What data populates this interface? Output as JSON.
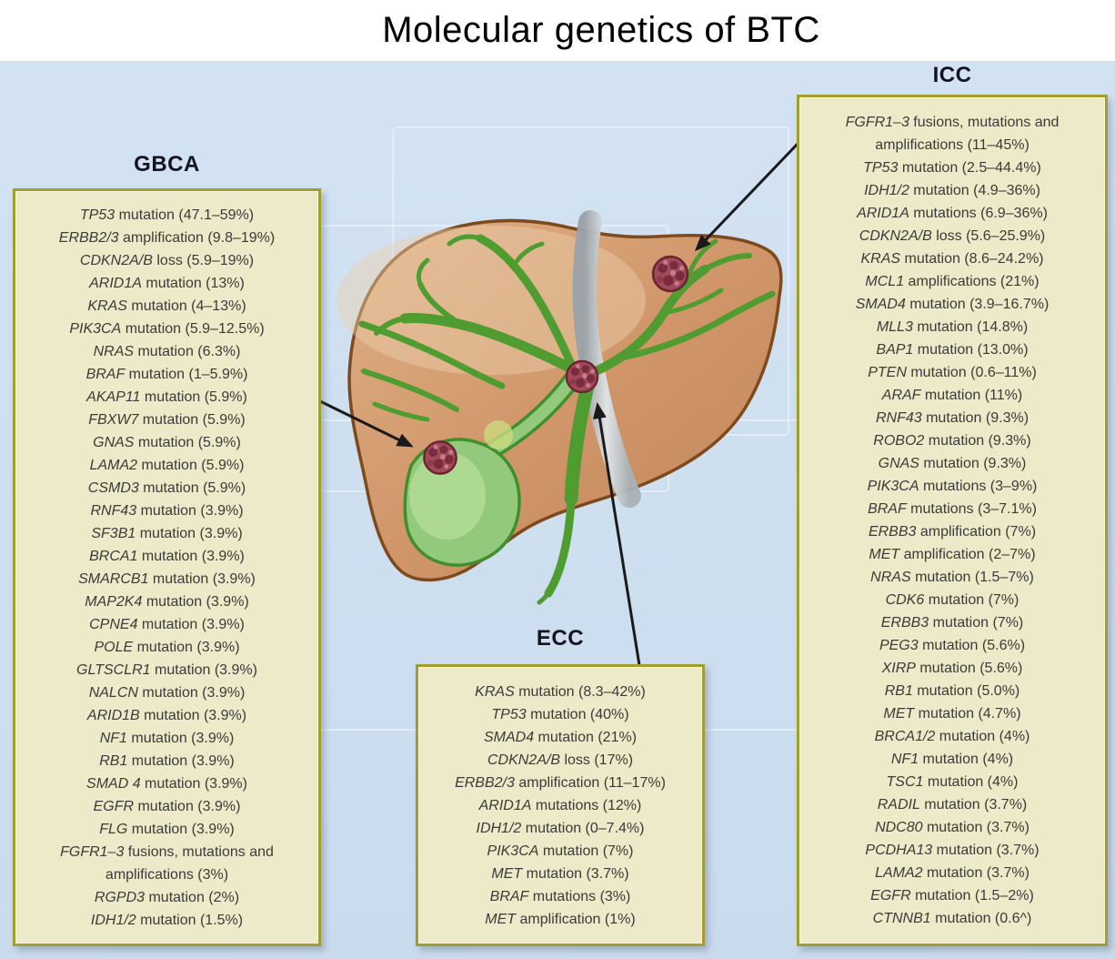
{
  "title": "Molecular genetics of BTC",
  "colors": {
    "background_blue": "#cfe0f0",
    "title_bar": "#ffffff",
    "box_fill": "#edeac9",
    "box_border": "#a19e2e",
    "entry_text": "#3a3a3a",
    "label_text": "#141420",
    "arrow": "#1a1a1a",
    "liver": "#cf9468",
    "liver_outline": "#7d4a1d",
    "bile_duct_green": "#4f9c31",
    "gallbladder_green": "#93c97d",
    "ligament_gray": "#aeb6bc",
    "tumor_red": "#a14a59"
  },
  "boxes": {
    "gbca": {
      "label": "GBCA",
      "items": [
        {
          "gene": "TP53",
          "alteration": "mutation (47.1–59%)"
        },
        {
          "gene": "ERBB2/3",
          "alteration": "amplification (9.8–19%)"
        },
        {
          "gene": "CDKN2A/B",
          "alteration": "loss (5.9–19%)"
        },
        {
          "gene": "ARID1A",
          "alteration": "mutation (13%)"
        },
        {
          "gene": "KRAS",
          "alteration": "mutation (4–13%)"
        },
        {
          "gene": "PIK3CA",
          "alteration": "mutation (5.9–12.5%)"
        },
        {
          "gene": "NRAS",
          "alteration": "mutation (6.3%)"
        },
        {
          "gene": "BRAF",
          "alteration": "mutation (1–5.9%)"
        },
        {
          "gene": "AKAP11",
          "alteration": "mutation (5.9%)"
        },
        {
          "gene": "FBXW7",
          "alteration": "mutation (5.9%)"
        },
        {
          "gene": "GNAS",
          "alteration": "mutation (5.9%)"
        },
        {
          "gene": "LAMA2",
          "alteration": "mutation (5.9%)"
        },
        {
          "gene": "CSMD3",
          "alteration": "mutation (5.9%)"
        },
        {
          "gene": "RNF43",
          "alteration": "mutation (3.9%)"
        },
        {
          "gene": "SF3B1",
          "alteration": "mutation (3.9%)"
        },
        {
          "gene": "BRCA1",
          "alteration": "mutation (3.9%)"
        },
        {
          "gene": "SMARCB1",
          "alteration": "mutation (3.9%)"
        },
        {
          "gene": "MAP2K4",
          "alteration": "mutation (3.9%)"
        },
        {
          "gene": "CPNE4",
          "alteration": "mutation (3.9%)"
        },
        {
          "gene": "POLE",
          "alteration": "mutation (3.9%)"
        },
        {
          "gene": "GLTSCLR1",
          "alteration": "mutation (3.9%)"
        },
        {
          "gene": "NALCN",
          "alteration": "mutation (3.9%)"
        },
        {
          "gene": "ARID1B",
          "alteration": "mutation (3.9%)"
        },
        {
          "gene": "NF1",
          "alteration": "mutation (3.9%)"
        },
        {
          "gene": "RB1",
          "alteration": "mutation (3.9%)"
        },
        {
          "gene": "SMAD 4",
          "alteration": "mutation (3.9%)"
        },
        {
          "gene": "EGFR",
          "alteration": "mutation (3.9%)"
        },
        {
          "gene": "FLG",
          "alteration": "mutation (3.9%)"
        },
        {
          "gene": "FGFR1–3",
          "alteration": "fusions, mutations and amplifications (3%)"
        },
        {
          "gene": "RGPD3",
          "alteration": "mutation (2%)"
        },
        {
          "gene": "IDH1/2",
          "alteration": "mutation (1.5%)"
        }
      ]
    },
    "ecc": {
      "label": "ECC",
      "items": [
        {
          "gene": "KRAS",
          "alteration": "mutation (8.3–42%)"
        },
        {
          "gene": "TP53",
          "alteration": "mutation (40%)"
        },
        {
          "gene": "SMAD4",
          "alteration": "mutation (21%)"
        },
        {
          "gene": "CDKN2A/B",
          "alteration": "loss (17%)"
        },
        {
          "gene": "ERBB2/3",
          "alteration": "amplification (11–17%)"
        },
        {
          "gene": "ARID1A",
          "alteration": "mutations (12%)"
        },
        {
          "gene": "IDH1/2",
          "alteration": "mutation (0–7.4%)"
        },
        {
          "gene": "PIK3CA",
          "alteration": "mutation (7%)"
        },
        {
          "gene": "MET",
          "alteration": "mutation (3.7%)"
        },
        {
          "gene": "BRAF",
          "alteration": "mutations (3%)"
        },
        {
          "gene": "MET",
          "alteration": "amplification (1%)"
        }
      ]
    },
    "icc": {
      "label": "ICC",
      "items": [
        {
          "gene": "FGFR1–3",
          "alteration": "fusions, mutations and amplifications (11–45%)"
        },
        {
          "gene": "TP53",
          "alteration": "mutation (2.5–44.4%)"
        },
        {
          "gene": "IDH1/2",
          "alteration": "mutation (4.9–36%)"
        },
        {
          "gene": "ARID1A",
          "alteration": "mutations (6.9–36%)"
        },
        {
          "gene": "CDKN2A/B",
          "alteration": "loss (5.6–25.9%)"
        },
        {
          "gene": "KRAS",
          "alteration": "mutation (8.6–24.2%)"
        },
        {
          "gene": "MCL1",
          "alteration": "amplifications (21%)"
        },
        {
          "gene": "SMAD4",
          "alteration": "mutation (3.9–16.7%)"
        },
        {
          "gene": "MLL3",
          "alteration": "mutation (14.8%)"
        },
        {
          "gene": "BAP1",
          "alteration": "mutation (13.0%)"
        },
        {
          "gene": "PTEN",
          "alteration": "mutation (0.6–11%)"
        },
        {
          "gene": "ARAF",
          "alteration": "mutation (11%)"
        },
        {
          "gene": "RNF43",
          "alteration": "mutation (9.3%)"
        },
        {
          "gene": "ROBO2",
          "alteration": "mutation (9.3%)"
        },
        {
          "gene": "GNAS",
          "alteration": "mutation (9.3%)"
        },
        {
          "gene": "PIK3CA",
          "alteration": "mutations (3–9%)"
        },
        {
          "gene": "BRAF",
          "alteration": "mutations (3–7.1%)"
        },
        {
          "gene": "ERBB3",
          "alteration": "amplification (7%)"
        },
        {
          "gene": "MET",
          "alteration": "amplification (2–7%)"
        },
        {
          "gene": "NRAS",
          "alteration": "mutation (1.5–7%)"
        },
        {
          "gene": "CDK6",
          "alteration": "mutation (7%)"
        },
        {
          "gene": "ERBB3",
          "alteration": "mutation (7%)"
        },
        {
          "gene": "PEG3",
          "alteration": "mutation (5.6%)"
        },
        {
          "gene": "XIRP",
          "alteration": "mutation (5.6%)"
        },
        {
          "gene": "RB1",
          "alteration": "mutation (5.0%)"
        },
        {
          "gene": "MET",
          "alteration": "mutation (4.7%)"
        },
        {
          "gene": "BRCA1/2",
          "alteration": "mutation (4%)"
        },
        {
          "gene": "NF1",
          "alteration": "mutation (4%)"
        },
        {
          "gene": "TSC1",
          "alteration": "mutation (4%)"
        },
        {
          "gene": "RADIL",
          "alteration": "mutation (3.7%)"
        },
        {
          "gene": "NDC80",
          "alteration": "mutation (3.7%)"
        },
        {
          "gene": "PCDHA13",
          "alteration": "mutation (3.7%)"
        },
        {
          "gene": "LAMA2",
          "alteration": "mutation (3.7%)"
        },
        {
          "gene": "EGFR",
          "alteration": "mutation (1.5–2%)"
        },
        {
          "gene": "CTNNB1",
          "alteration": "mutation (0.6^)"
        }
      ]
    }
  }
}
